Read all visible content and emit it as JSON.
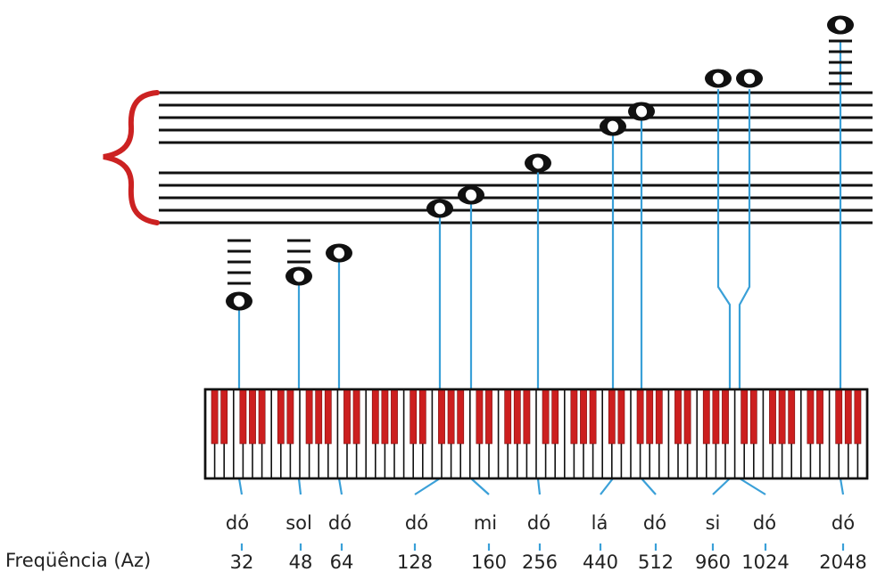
{
  "diagram": {
    "frequency_label": "Freqüência (Az)",
    "notes": [
      {
        "name": "dó",
        "frequency": "32"
      },
      {
        "name": "sol",
        "frequency": "48"
      },
      {
        "name": "dó",
        "frequency": "64"
      },
      {
        "name": "dó",
        "frequency": "128"
      },
      {
        "name": "mi",
        "frequency": "160"
      },
      {
        "name": "dó",
        "frequency": "256"
      },
      {
        "name": "lá",
        "frequency": "440"
      },
      {
        "name": "dó",
        "frequency": "512"
      },
      {
        "name": "si",
        "frequency": "960"
      },
      {
        "name": "dó",
        "frequency": "1024"
      },
      {
        "name": "dó",
        "frequency": "2048"
      }
    ],
    "colors": {
      "staff": "#111111",
      "brace": "#cc2222",
      "black_key": "#cc1f1f",
      "connector": "#3aa0d8",
      "note": "#111111"
    }
  }
}
